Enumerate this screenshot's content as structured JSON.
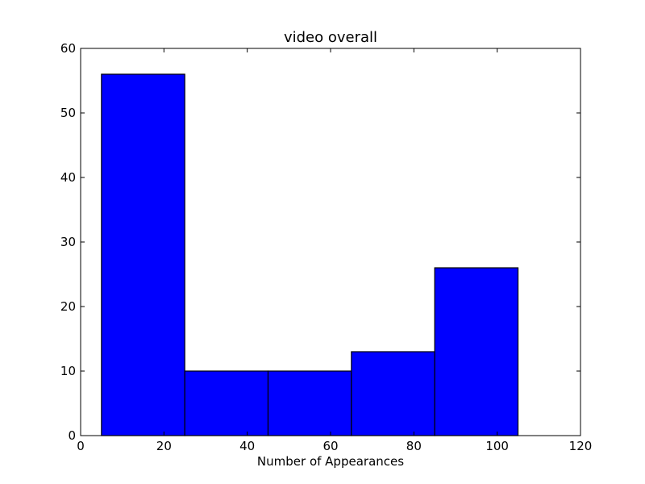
{
  "chart_data": {
    "type": "bar",
    "title": "video overall",
    "xlabel": "Number of Appearances",
    "ylabel": "",
    "bins": [
      {
        "x0": 5,
        "x1": 25,
        "value": 56
      },
      {
        "x0": 25,
        "x1": 45,
        "value": 10
      },
      {
        "x0": 45,
        "x1": 65,
        "value": 10
      },
      {
        "x0": 65,
        "x1": 85,
        "value": 13
      },
      {
        "x0": 85,
        "x1": 105,
        "value": 26
      }
    ],
    "xlim": [
      0,
      120
    ],
    "ylim": [
      0,
      60
    ],
    "xticks": [
      0,
      20,
      40,
      60,
      80,
      100,
      120
    ],
    "yticks": [
      0,
      10,
      20,
      30,
      40,
      50,
      60
    ],
    "grid": false,
    "bar_color": "#0000ff",
    "edge_color": "#000000"
  }
}
